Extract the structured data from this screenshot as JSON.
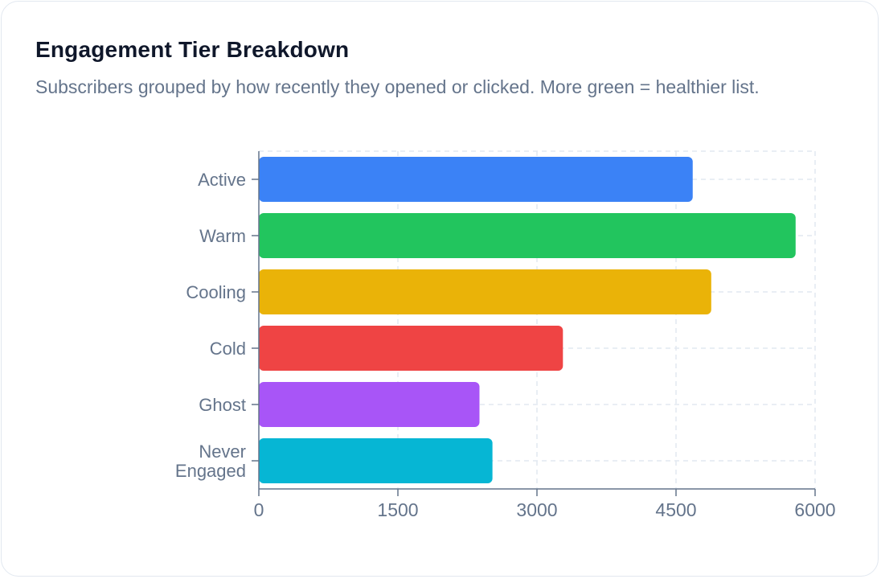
{
  "card": {
    "title": "Engagement Tier Breakdown",
    "subtitle": "Subscribers grouped by how recently they opened or clicked. More green = healthier list."
  },
  "chart_data": {
    "type": "bar",
    "orientation": "horizontal",
    "title": "",
    "xlabel": "",
    "ylabel": "",
    "categories": [
      "Active",
      "Warm",
      "Cooling",
      "Cold",
      "Ghost",
      "Never Engaged"
    ],
    "values": [
      4680,
      5790,
      4880,
      3280,
      2380,
      2520
    ],
    "colors": [
      "#3b82f6",
      "#22c55e",
      "#eab308",
      "#ef4444",
      "#a855f7",
      "#06b6d4"
    ],
    "xlim": [
      0,
      6000
    ],
    "xticks": [
      0,
      1500,
      3000,
      4500,
      6000
    ],
    "grid": true
  }
}
